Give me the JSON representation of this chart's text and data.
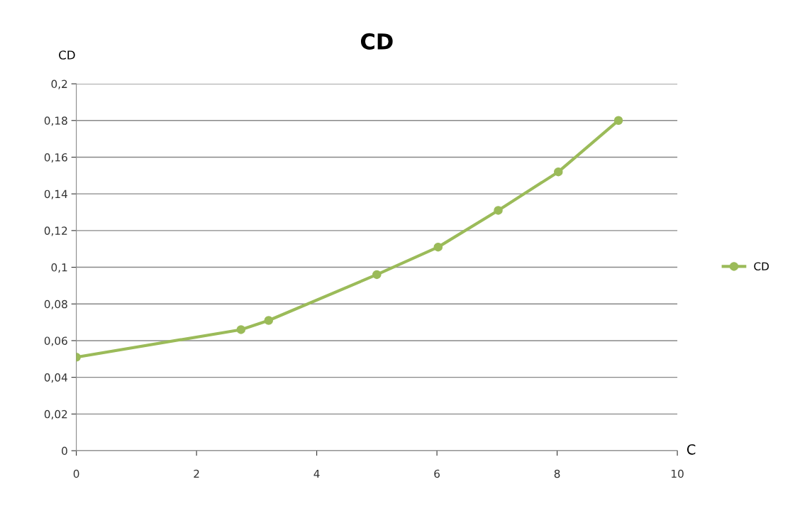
{
  "chart_data": {
    "type": "line",
    "title": "CD",
    "xlabel": "C",
    "ylabel": "CD",
    "series": [
      {
        "name": "CD",
        "color": "#9bbb59",
        "x": [
          0,
          2.74,
          3.2,
          5.0,
          6.02,
          7.02,
          8.02,
          9.02
        ],
        "values": [
          0.051,
          0.066,
          0.071,
          0.096,
          0.111,
          0.131,
          0.152,
          0.18
        ]
      }
    ],
    "xlim": [
      0,
      10
    ],
    "xticks": [
      0,
      2,
      4,
      6,
      8,
      10
    ],
    "ylim": [
      0,
      0.2
    ],
    "yticks": [
      0,
      {
        "value": 0.02,
        "label": "0,02"
      },
      {
        "value": 0.04,
        "label": "0,04"
      },
      {
        "value": 0.06,
        "label": "0,06"
      },
      {
        "value": 0.08,
        "label": "0,08"
      },
      {
        "value": 0.1,
        "label": "0,1"
      },
      {
        "value": 0.12,
        "label": "0,12"
      },
      {
        "value": 0.14,
        "label": "0,14"
      },
      {
        "value": 0.16,
        "label": "0,16"
      },
      {
        "value": 0.18,
        "label": "0,18"
      },
      {
        "value": 0.2,
        "label": "0,2"
      }
    ],
    "grid": "y",
    "legend": "right",
    "marker": "circle",
    "line_style": "solid"
  }
}
